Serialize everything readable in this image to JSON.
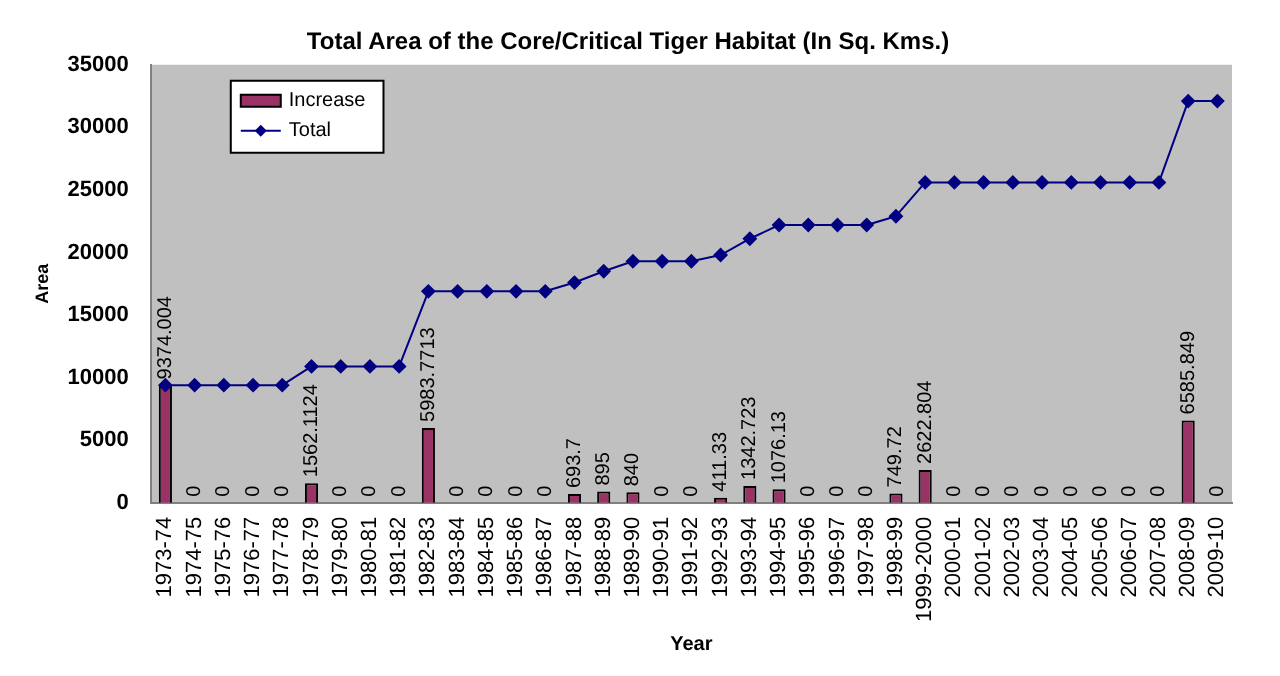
{
  "chart_data": {
    "type": "bar",
    "title": "Total Area of the Core/Critical Tiger Habitat (In Sq. Kms.)",
    "xlabel": "Year",
    "ylabel": "Area",
    "categories": [
      "1973-74",
      "1974-75",
      "1975-76",
      "1976-77",
      "1977-78",
      "1978-79",
      "1979-80",
      "1980-81",
      "1981-82",
      "1982-83",
      "1983-84",
      "1984-85",
      "1985-86",
      "1986-87",
      "1987-88",
      "1988-89",
      "1989-90",
      "1990-91",
      "1991-92",
      "1992-93",
      "1993-94",
      "1994-95",
      "1995-96",
      "1996-97",
      "1997-98",
      "1998-99",
      "1999-2000",
      "2000-01",
      "2001-02",
      "2002-03",
      "2003-04",
      "2004-05",
      "2005-06",
      "2006-07",
      "2007-08",
      "2008-09",
      "2009-10"
    ],
    "series": [
      {
        "name": "Increase",
        "color": "#993366",
        "values": [
          9374.004,
          0,
          0,
          0,
          0,
          1562.1124,
          0,
          0,
          0,
          5983.7713,
          0,
          0,
          0,
          0,
          693.7,
          895,
          840,
          0,
          0,
          411.33,
          1342.723,
          1076.13,
          0,
          0,
          0,
          749.72,
          2622.804,
          0,
          0,
          0,
          0,
          0,
          0,
          0,
          0,
          6585.849,
          0
        ],
        "value_labels": [
          "9374.004",
          "0",
          "0",
          "0",
          "0",
          "1562.1124",
          "0",
          "0",
          "0",
          "5983.7713",
          "0",
          "0",
          "0",
          "0",
          "693.7",
          "895",
          "840",
          "0",
          "0",
          "411.33",
          "1342.723",
          "1076.13",
          "0",
          "0",
          "0",
          "749.72",
          "2622.804",
          "0",
          "0",
          "0",
          "0",
          "0",
          "0",
          "0",
          "0",
          "6585.849",
          "0"
        ]
      },
      {
        "name": "Total",
        "type": "line",
        "color": "#000080",
        "marker": "diamond",
        "values": [
          9400,
          9400,
          9400,
          9400,
          9400,
          10900,
          10900,
          10900,
          10900,
          16900,
          16900,
          16900,
          16900,
          16900,
          17600,
          18500,
          19300,
          19300,
          19300,
          19800,
          21100,
          22200,
          22200,
          22200,
          22200,
          22900,
          25600,
          25600,
          25600,
          25600,
          25600,
          25600,
          25600,
          25600,
          25600,
          32100,
          32100
        ]
      }
    ],
    "ylim": [
      0,
      35000
    ],
    "yticks": [
      0,
      5000,
      10000,
      15000,
      20000,
      25000,
      30000,
      35000
    ],
    "grid": false,
    "legend": "top left"
  }
}
